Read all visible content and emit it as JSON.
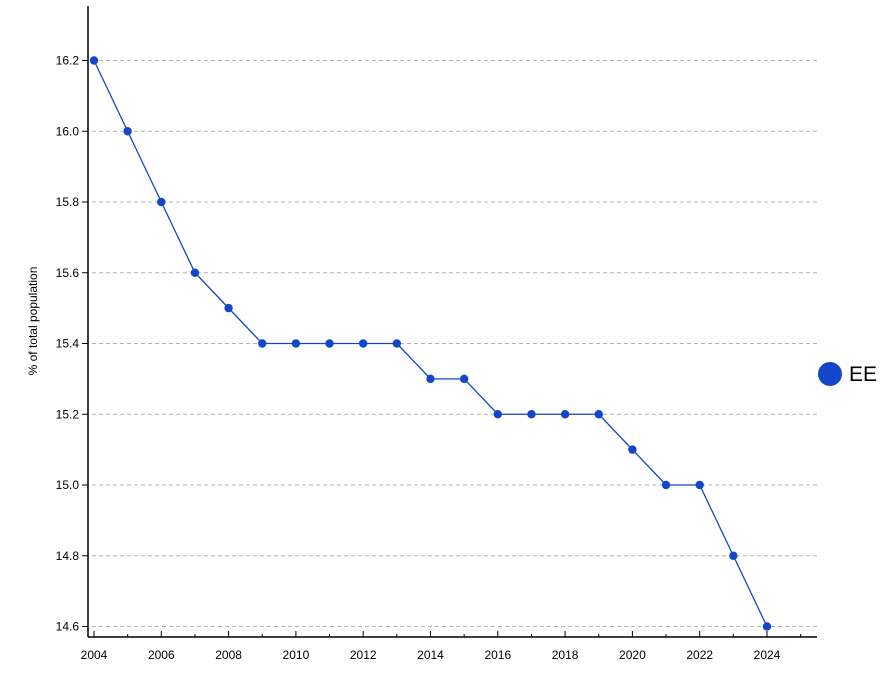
{
  "chart_data": {
    "type": "line",
    "title": "",
    "xlabel": "",
    "ylabel": "% of total population",
    "x": [
      2004,
      2005,
      2006,
      2007,
      2008,
      2009,
      2010,
      2011,
      2012,
      2013,
      2014,
      2015,
      2016,
      2017,
      2018,
      2019,
      2020,
      2021,
      2022,
      2023,
      2024
    ],
    "series": [
      {
        "name": "EE",
        "color": "#1446c8",
        "values": [
          16.2,
          16.0,
          15.8,
          15.6,
          15.5,
          15.4,
          15.4,
          15.4,
          15.4,
          15.4,
          15.3,
          15.3,
          15.2,
          15.2,
          15.2,
          15.2,
          15.1,
          15.0,
          15.0,
          14.8,
          14.6
        ]
      }
    ],
    "x_tick_labels": [
      "2004",
      "2006",
      "2008",
      "2010",
      "2012",
      "2014",
      "2016",
      "2018",
      "2020",
      "2022",
      "2024"
    ],
    "y_tick_labels": [
      "14.6",
      "14.8",
      "15.0",
      "15.2",
      "15.4",
      "15.6",
      "15.8",
      "16.0",
      "16.2"
    ],
    "xlim": [
      2004,
      2025.5
    ],
    "ylim": [
      14.575,
      16.35
    ],
    "grid": "horizontal-dashed",
    "legend_placement": "right"
  }
}
